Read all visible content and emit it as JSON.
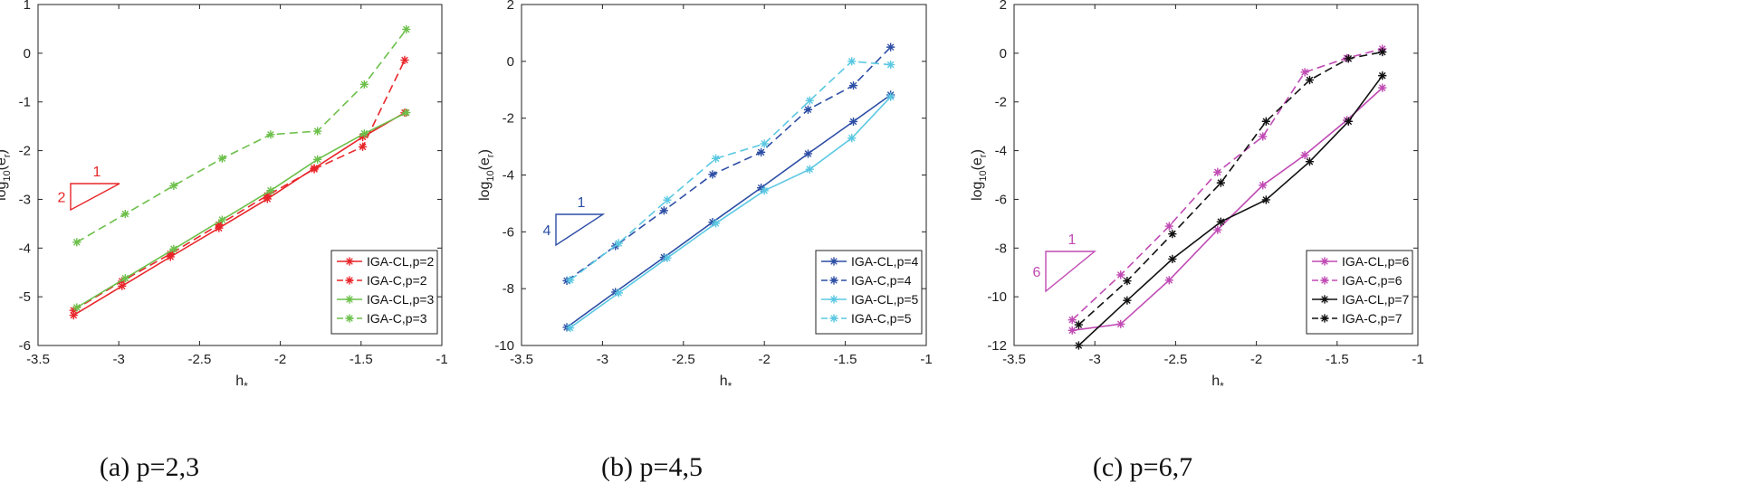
{
  "chart_data": [
    {
      "type": "line",
      "caption": "(a)  p=2,3",
      "xlabel": "h",
      "xlabel_sub": "*",
      "ylabel": "log",
      "ylabel_sub": "10",
      "ylabel_tail": "(e",
      "ylabel_tail_sub": "r",
      "ylabel_end": ")",
      "xlim": [
        -3.5,
        -1
      ],
      "ylim": [
        -6,
        1
      ],
      "xticks": [
        -3.5,
        -3,
        -2.5,
        -2,
        -1.5,
        -1
      ],
      "xtick_labels": [
        "-3.5",
        "-3",
        "-2.5",
        "-2",
        "-1.5",
        "-1"
      ],
      "yticks": [
        -6,
        -5,
        -4,
        -3,
        -2,
        -1,
        0,
        1
      ],
      "ytick_labels": [
        "-6",
        "-5",
        "-4",
        "-3",
        "-2",
        "-1",
        "0",
        "1"
      ],
      "slope_triangle": {
        "run": "1",
        "rise": "2",
        "color": "#e8262a"
      },
      "series": [
        {
          "name": "IGA-CL,p=2",
          "color": "#e8262a",
          "dash": false,
          "x": [
            -3.28,
            -2.98,
            -2.68,
            -2.38,
            -2.08,
            -1.79,
            -1.49,
            -1.23
          ],
          "y": [
            -5.38,
            -4.78,
            -4.18,
            -3.59,
            -2.99,
            -2.36,
            -1.72,
            -1.22
          ]
        },
        {
          "name": "IGA-C,p=2",
          "color": "#e8262a",
          "dash": true,
          "x": [
            -3.28,
            -2.98,
            -2.68,
            -2.38,
            -2.08,
            -1.79,
            -1.49,
            -1.23
          ],
          "y": [
            -5.28,
            -4.68,
            -4.12,
            -3.52,
            -2.92,
            -2.38,
            -1.92,
            -0.14
          ]
        },
        {
          "name": "IGA-CL,p=3",
          "color": "#6cc04a",
          "dash": false,
          "x": [
            -3.26,
            -2.96,
            -2.66,
            -2.36,
            -2.06,
            -1.77,
            -1.48,
            -1.22
          ],
          "y": [
            -5.22,
            -4.62,
            -4.02,
            -3.42,
            -2.82,
            -2.18,
            -1.65,
            -1.22
          ]
        },
        {
          "name": "IGA-C,p=3",
          "color": "#6cc04a",
          "dash": true,
          "x": [
            -3.26,
            -2.96,
            -2.66,
            -2.36,
            -2.06,
            -1.77,
            -1.48,
            -1.22
          ],
          "y": [
            -3.88,
            -3.3,
            -2.72,
            -2.16,
            -1.67,
            -1.6,
            -0.64,
            0.49
          ]
        }
      ]
    },
    {
      "type": "line",
      "caption": "(b)  p=4,5",
      "xlabel": "h",
      "xlabel_sub": "*",
      "ylabel": "log",
      "ylabel_sub": "10",
      "ylabel_tail": "(e",
      "ylabel_tail_sub": "r",
      "ylabel_end": ")",
      "xlim": [
        -3.5,
        -1
      ],
      "ylim": [
        -10,
        2
      ],
      "xticks": [
        -3.5,
        -3,
        -2.5,
        -2,
        -1.5,
        -1
      ],
      "xtick_labels": [
        "-3.5",
        "-3",
        "-2.5",
        "-2",
        "-1.5",
        "-1"
      ],
      "yticks": [
        -10,
        -8,
        -6,
        -4,
        -2,
        0,
        2
      ],
      "ytick_labels": [
        "-10",
        "-8",
        "-6",
        "-4",
        "-2",
        "0",
        "2"
      ],
      "slope_triangle": {
        "run": "1",
        "rise": "4",
        "color": "#2d4ea5"
      },
      "series": [
        {
          "name": "IGA-CL,p=4",
          "color": "#2d4ea5",
          "dash": false,
          "x": [
            -3.22,
            -2.92,
            -2.62,
            -2.32,
            -2.02,
            -1.73,
            -1.45,
            -1.22
          ],
          "y": [
            -9.36,
            -8.12,
            -6.9,
            -5.66,
            -4.45,
            -3.25,
            -2.12,
            -1.18
          ]
        },
        {
          "name": "IGA-C,p=4",
          "color": "#2d4ea5",
          "dash": true,
          "x": [
            -3.22,
            -2.92,
            -2.62,
            -2.32,
            -2.02,
            -1.73,
            -1.45,
            -1.22
          ],
          "y": [
            -7.72,
            -6.5,
            -5.25,
            -3.98,
            -3.2,
            -1.7,
            -0.85,
            0.5
          ]
        },
        {
          "name": "IGA-CL,p=5",
          "color": "#5bc8e2",
          "dash": false,
          "x": [
            -3.2,
            -2.9,
            -2.6,
            -2.3,
            -2.0,
            -1.72,
            -1.46,
            -1.22
          ],
          "y": [
            -9.38,
            -8.15,
            -6.92,
            -5.7,
            -4.55,
            -3.8,
            -2.7,
            -1.25
          ]
        },
        {
          "name": "IGA-C,p=5",
          "color": "#5bc8e2",
          "dash": true,
          "x": [
            -3.2,
            -2.9,
            -2.6,
            -2.3,
            -2.0,
            -1.72,
            -1.46,
            -1.22
          ],
          "y": [
            -7.7,
            -6.4,
            -4.88,
            -3.42,
            -2.9,
            -1.38,
            0.0,
            -0.12
          ]
        }
      ]
    },
    {
      "type": "line",
      "caption": "(c)  p=6,7",
      "xlabel": "h",
      "xlabel_sub": "*",
      "ylabel": "log",
      "ylabel_sub": "10",
      "ylabel_tail": "(e",
      "ylabel_tail_sub": "r",
      "ylabel_end": ")",
      "xlim": [
        -3.5,
        -1
      ],
      "ylim": [
        -12,
        2
      ],
      "xticks": [
        -3.5,
        -3,
        -2.5,
        -2,
        -1.5,
        -1
      ],
      "xtick_labels": [
        "-3.5",
        "-3",
        "-2.5",
        "-2",
        "-1.5",
        "-1"
      ],
      "yticks": [
        -12,
        -10,
        -8,
        -6,
        -4,
        -2,
        0,
        2
      ],
      "ytick_labels": [
        "-12",
        "-10",
        "-8",
        "-6",
        "-4",
        "-2",
        "0",
        "2"
      ],
      "slope_triangle": {
        "run": "1",
        "rise": "6",
        "color": "#c04ab4"
      },
      "series": [
        {
          "name": "IGA-CL,p=6",
          "color": "#c04ab4",
          "dash": false,
          "x": [
            -3.14,
            -2.84,
            -2.54,
            -2.24,
            -1.96,
            -1.7,
            -1.44,
            -1.22
          ],
          "y": [
            -11.38,
            -11.12,
            -9.32,
            -7.25,
            -5.42,
            -4.18,
            -2.75,
            -1.42
          ]
        },
        {
          "name": "IGA-C,p=6",
          "color": "#c04ab4",
          "dash": true,
          "x": [
            -3.14,
            -2.84,
            -2.54,
            -2.24,
            -1.96,
            -1.7,
            -1.44,
            -1.22
          ],
          "y": [
            -10.95,
            -9.1,
            -7.1,
            -4.88,
            -3.42,
            -0.78,
            -0.2,
            0.18
          ]
        },
        {
          "name": "IGA-CL,p=7",
          "color": "#111111",
          "dash": false,
          "x": [
            -3.1,
            -2.8,
            -2.52,
            -2.22,
            -1.94,
            -1.67,
            -1.43,
            -1.22
          ],
          "y": [
            -12.0,
            -10.15,
            -8.45,
            -6.92,
            -6.02,
            -4.45,
            -2.8,
            -0.92
          ]
        },
        {
          "name": "IGA-C,p=7",
          "color": "#111111",
          "dash": true,
          "x": [
            -3.1,
            -2.8,
            -2.52,
            -2.22,
            -1.94,
            -1.67,
            -1.43,
            -1.22
          ],
          "y": [
            -11.15,
            -9.35,
            -7.42,
            -5.32,
            -2.8,
            -1.1,
            -0.22,
            0.05
          ]
        }
      ]
    }
  ]
}
